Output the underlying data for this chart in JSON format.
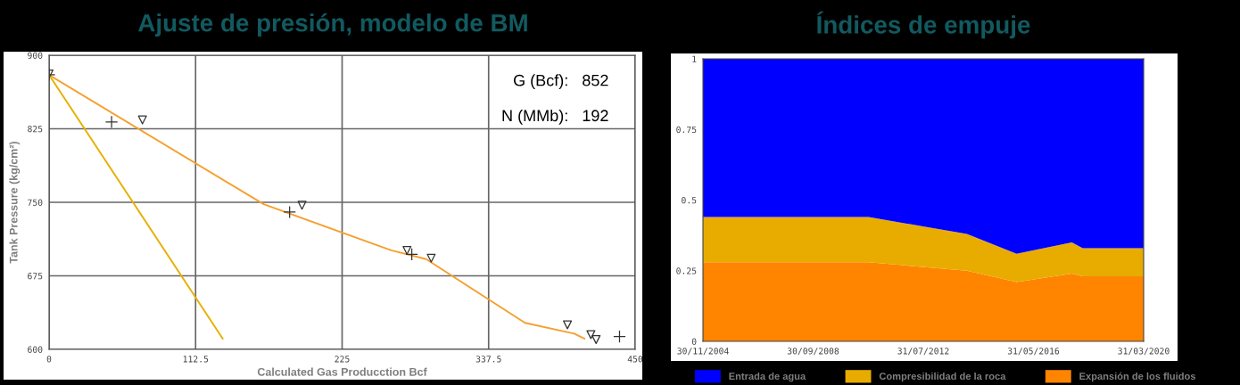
{
  "chart_data": [
    {
      "type": "line",
      "title": "Ajuste de presión, modelo de BM",
      "xlabel": "Calculated Gas Producction Bcf",
      "ylabel": "Tank Pressure (kg/cm²)",
      "xlim": [
        0,
        450
      ],
      "xticks": [
        0,
        112.5,
        225,
        337.5,
        450
      ],
      "ylim": [
        600,
        900
      ],
      "yticks": [
        600,
        675,
        750,
        825,
        900
      ],
      "grid": true,
      "legend": false,
      "annotations": [
        "G (Bcf):   852",
        "N (MMb):   192"
      ],
      "series": [
        {
          "type": "line",
          "color": "#f5a030",
          "x": [
            0,
            164.8,
            262.7,
            289.5,
            365.4,
            403.2,
            411
          ],
          "values": [
            880,
            748,
            701,
            692,
            627,
            616,
            611
          ]
        },
        {
          "type": "line",
          "color": "#e6b000",
          "x": [
            0,
            133.3
          ],
          "values": [
            880,
            611
          ]
        },
        {
          "type": "scatter",
          "color": "#333333",
          "marker": "cross",
          "x": [
            0,
            48,
            184.7,
            278.5,
            438
          ],
          "values": [
            880,
            832,
            740,
            697,
            613
          ]
        },
        {
          "type": "scatter",
          "color": "#333333",
          "marker": "triangle",
          "x": [
            0,
            71.7,
            194.2,
            274.8,
            293.4,
            398,
            416,
            420
          ],
          "values": [
            881,
            834,
            747,
            701,
            693,
            625,
            615,
            610
          ]
        }
      ]
    },
    {
      "type": "area",
      "stacked": true,
      "title": "Índices de empuje",
      "legend": "bottom",
      "grid": false,
      "x": [
        "2004-11-30",
        "2010-09-05",
        "2014-02-05",
        "2015-10-29",
        "2017-09-30",
        "2018-02-16",
        "2020-03-31"
      ],
      "xlim": [
        "2004-11-30",
        "2020-03-31"
      ],
      "xticks": [
        {
          "value": "2004-11-30",
          "label": "30/11/2004"
        },
        {
          "value": "2008-09-30",
          "label": "30/09/2008"
        },
        {
          "value": "2012-07-31",
          "label": "31/07/2012"
        },
        {
          "value": "2016-05-31",
          "label": "31/05/2016"
        },
        {
          "value": "2020-03-31",
          "label": "31/03/2020"
        }
      ],
      "ylim": [
        0,
        1
      ],
      "yticks": [
        0,
        0.25,
        0.5,
        0.75,
        1
      ],
      "series": [
        {
          "name": "Expansión de los fluidos",
          "color": "#ff8400",
          "values": [
            0.28,
            0.28,
            0.25,
            0.21,
            0.24,
            0.23,
            0.23
          ]
        },
        {
          "name": "Compresibilidad de la roca",
          "color": "#e8ac00",
          "values": [
            0.16,
            0.16,
            0.13,
            0.1,
            0.11,
            0.1,
            0.1
          ]
        },
        {
          "name": "Entrada de agua",
          "color": "#0000ff",
          "values": [
            0.56,
            0.56,
            0.62,
            0.69,
            0.65,
            0.67,
            0.67
          ]
        }
      ]
    }
  ]
}
